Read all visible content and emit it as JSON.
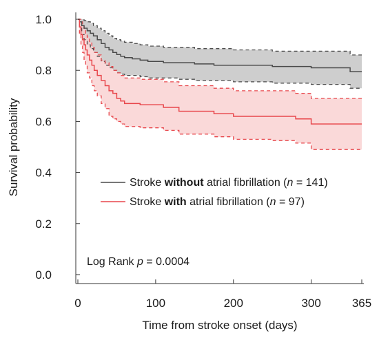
{
  "chart_data": {
    "type": "line",
    "title": "",
    "xlabel": "Time from stroke onset (days)",
    "ylabel": "Survival probability",
    "xlim": [
      0,
      365
    ],
    "ylim": [
      0,
      1.0
    ],
    "x_ticks": [
      0,
      100,
      200,
      300,
      365
    ],
    "y_ticks": [
      0.0,
      0.2,
      0.4,
      0.6,
      0.8,
      1.0
    ],
    "grid": false,
    "legend_position": "center-right",
    "series": [
      {
        "key": "without_af",
        "legend": {
          "pre": "Stroke ",
          "bold": "without",
          "post": " atrial fibrillation (",
          "italic": "n",
          "tail": " = 141)"
        },
        "color": "#4a4a4a",
        "band_color": "#bdbdbd",
        "x": [
          0,
          2,
          5,
          8,
          12,
          16,
          20,
          25,
          30,
          35,
          40,
          45,
          50,
          55,
          60,
          70,
          80,
          90,
          110,
          130,
          150,
          175,
          200,
          250,
          300,
          340,
          350,
          365
        ],
        "y": [
          1.0,
          0.99,
          0.975,
          0.965,
          0.955,
          0.945,
          0.935,
          0.92,
          0.905,
          0.89,
          0.88,
          0.87,
          0.862,
          0.855,
          0.85,
          0.845,
          0.84,
          0.835,
          0.83,
          0.83,
          0.825,
          0.82,
          0.82,
          0.815,
          0.81,
          0.81,
          0.795,
          0.795
        ],
        "lower": [
          1.0,
          0.97,
          0.94,
          0.92,
          0.9,
          0.885,
          0.87,
          0.855,
          0.835,
          0.82,
          0.81,
          0.8,
          0.79,
          0.785,
          0.78,
          0.78,
          0.775,
          0.77,
          0.77,
          0.765,
          0.76,
          0.76,
          0.755,
          0.75,
          0.745,
          0.745,
          0.73,
          0.73
        ],
        "upper": [
          1.0,
          1.0,
          1.0,
          0.995,
          0.99,
          0.985,
          0.975,
          0.965,
          0.955,
          0.945,
          0.935,
          0.925,
          0.92,
          0.915,
          0.91,
          0.905,
          0.9,
          0.895,
          0.89,
          0.89,
          0.885,
          0.885,
          0.88,
          0.875,
          0.875,
          0.875,
          0.86,
          0.86
        ]
      },
      {
        "key": "with_af",
        "legend": {
          "pre": "Stroke ",
          "bold": "with",
          "post": " atrial fibrillation (",
          "italic": "n",
          "tail": " = 97)"
        },
        "color": "#e8474c",
        "band_color": "#f8cccc",
        "x": [
          0,
          2,
          4,
          6,
          8,
          10,
          12,
          15,
          18,
          21,
          25,
          30,
          35,
          40,
          45,
          50,
          55,
          60,
          80,
          110,
          130,
          175,
          200,
          250,
          280,
          300,
          365
        ],
        "y": [
          1.0,
          0.97,
          0.94,
          0.92,
          0.9,
          0.88,
          0.86,
          0.84,
          0.82,
          0.8,
          0.78,
          0.76,
          0.74,
          0.72,
          0.71,
          0.69,
          0.68,
          0.67,
          0.665,
          0.655,
          0.64,
          0.63,
          0.62,
          0.62,
          0.61,
          0.59,
          0.59
        ],
        "lower": [
          1.0,
          0.94,
          0.9,
          0.87,
          0.84,
          0.82,
          0.79,
          0.77,
          0.74,
          0.72,
          0.7,
          0.67,
          0.65,
          0.62,
          0.61,
          0.6,
          0.59,
          0.58,
          0.575,
          0.565,
          0.55,
          0.54,
          0.53,
          0.525,
          0.515,
          0.49,
          0.49
        ],
        "upper": [
          1.0,
          1.0,
          0.99,
          0.975,
          0.96,
          0.945,
          0.93,
          0.91,
          0.89,
          0.87,
          0.86,
          0.84,
          0.83,
          0.815,
          0.8,
          0.79,
          0.78,
          0.77,
          0.765,
          0.755,
          0.74,
          0.73,
          0.72,
          0.72,
          0.71,
          0.69,
          0.69
        ]
      }
    ],
    "annotation": {
      "pre": "Log Rank ",
      "italic": "p",
      "post": " = 0.0004"
    }
  }
}
